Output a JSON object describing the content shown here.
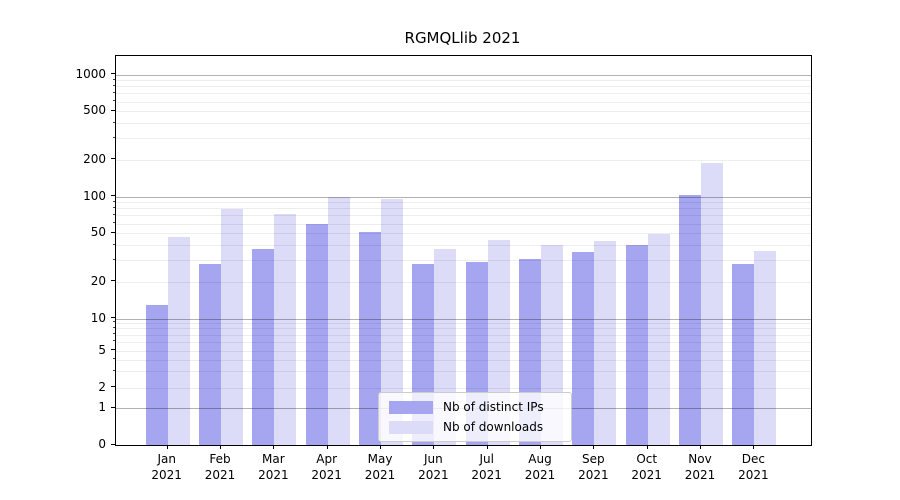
{
  "title": "RGMQLlib 2021",
  "colors": {
    "ips": "#a5a5f0",
    "downloads": "#dcdcf8",
    "grid_major": "rgba(0,0,0,0.30)",
    "grid_minor": "rgba(0,0,0,0.07)"
  },
  "legend": {
    "items": [
      {
        "label": "Nb of distinct IPs",
        "series": "ips"
      },
      {
        "label": "Nb of downloads",
        "series": "downloads"
      }
    ]
  },
  "y_axis": {
    "tick_labels": [
      "0",
      "1",
      "2",
      "5",
      "10",
      "20",
      "50",
      "100",
      "200",
      "500",
      "1000"
    ]
  },
  "x_axis": {
    "year": "2021",
    "months": [
      "Jan",
      "Feb",
      "Mar",
      "Apr",
      "May",
      "Jun",
      "Jul",
      "Aug",
      "Sep",
      "Oct",
      "Nov",
      "Dec"
    ]
  },
  "chart_data": {
    "type": "bar",
    "title": "RGMQLlib 2021",
    "categories": [
      "Jan 2021",
      "Feb 2021",
      "Mar 2021",
      "Apr 2021",
      "May 2021",
      "Jun 2021",
      "Jul 2021",
      "Aug 2021",
      "Sep 2021",
      "Oct 2021",
      "Nov 2021",
      "Dec 2021"
    ],
    "series": [
      {
        "name": "Nb of distinct IPs",
        "key": "ips",
        "values": [
          13,
          28,
          37,
          60,
          51,
          28,
          29,
          31,
          35,
          40,
          103,
          28
        ]
      },
      {
        "name": "Nb of downloads",
        "key": "downloads",
        "values": [
          47,
          79,
          72,
          100,
          95,
          37,
          44,
          40,
          43,
          49,
          189,
          36
        ]
      }
    ],
    "xlabel": "",
    "ylabel": "",
    "yscale": "symlog",
    "y_ticks": [
      0,
      1,
      2,
      5,
      10,
      20,
      50,
      100,
      200,
      500,
      1000
    ],
    "ylim": [
      0,
      1500
    ],
    "grid": true,
    "legend_position": "lower center"
  }
}
